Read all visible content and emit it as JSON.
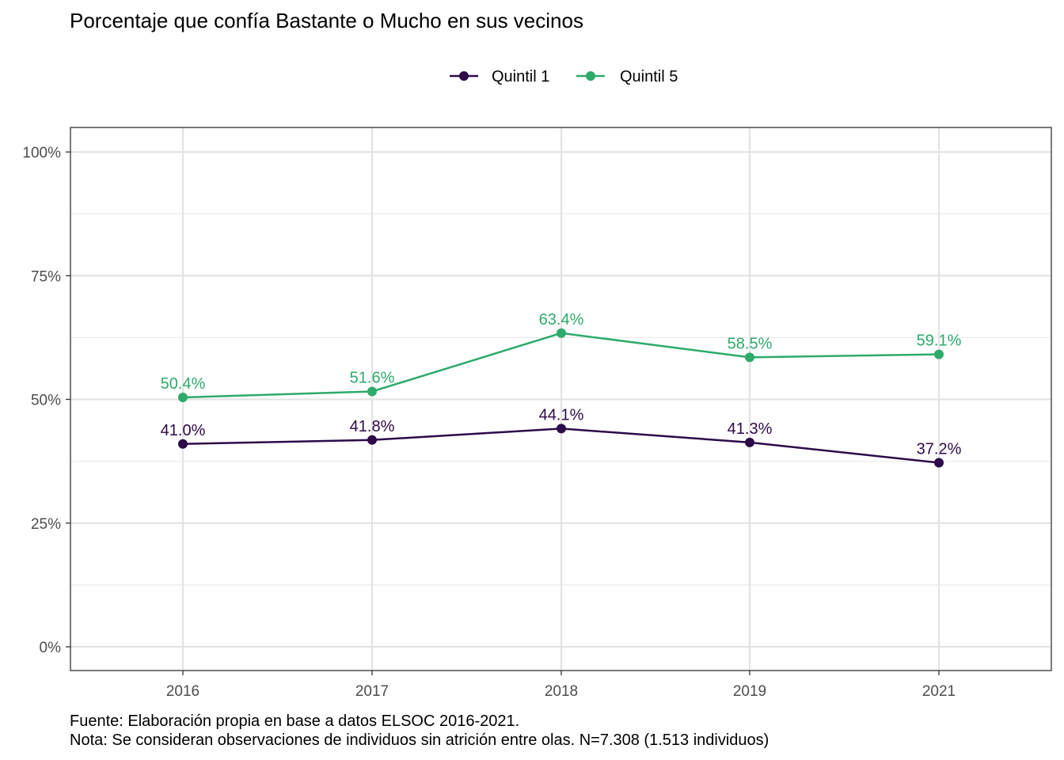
{
  "chart_data": {
    "type": "line",
    "title": "Porcentaje que confía Bastante o Mucho en sus vecinos",
    "xlabel": "",
    "ylabel": "",
    "categories": [
      "2016",
      "2017",
      "2018",
      "2019",
      "2021"
    ],
    "ylim": [
      0,
      100
    ],
    "yticks": [
      0,
      25,
      50,
      75,
      100
    ],
    "ytick_labels": [
      "0%",
      "25%",
      "50%",
      "75%",
      "100%"
    ],
    "grid": true,
    "legend_position": "top",
    "series": [
      {
        "name": "Quintil 1",
        "color": "#2d0a48",
        "values": [
          41.0,
          41.8,
          44.1,
          41.3,
          37.2
        ],
        "labels": [
          "41.0%",
          "41.8%",
          "44.1%",
          "41.3%",
          "37.2%"
        ]
      },
      {
        "name": "Quintil 5",
        "color": "#2eaa6b",
        "values": [
          50.4,
          51.6,
          63.4,
          58.5,
          59.1
        ],
        "labels": [
          "50.4%",
          "51.6%",
          "63.4%",
          "58.5%",
          "59.1%"
        ]
      }
    ],
    "caption": [
      "Fuente: Elaboración propia en base a datos ELSOC 2016-2021.",
      "Nota: Se consideran observaciones de individuos sin atrición entre olas. N=7.308 (1.513 individuos)"
    ]
  }
}
